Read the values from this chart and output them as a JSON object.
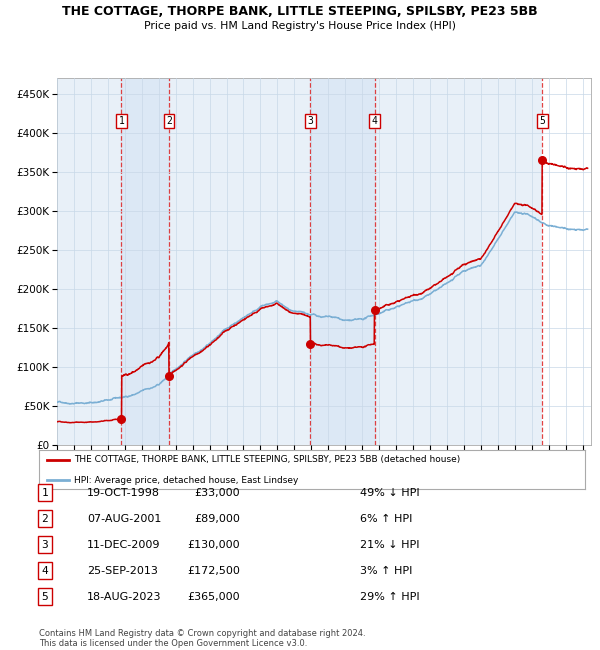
{
  "title": "THE COTTAGE, THORPE BANK, LITTLE STEEPING, SPILSBY, PE23 5BB",
  "subtitle": "Price paid vs. HM Land Registry's House Price Index (HPI)",
  "xlim": [
    1995.0,
    2026.5
  ],
  "ylim": [
    0,
    470000
  ],
  "yticks": [
    0,
    50000,
    100000,
    150000,
    200000,
    250000,
    300000,
    350000,
    400000,
    450000
  ],
  "ytick_labels": [
    "£0",
    "£50K",
    "£100K",
    "£150K",
    "£200K",
    "£250K",
    "£300K",
    "£350K",
    "£400K",
    "£450K"
  ],
  "sale_dates_num": [
    1998.8,
    2001.6,
    2009.95,
    2013.73,
    2023.63
  ],
  "sale_prices": [
    33000,
    89000,
    130000,
    172500,
    365000
  ],
  "sale_labels": [
    "1",
    "2",
    "3",
    "4",
    "5"
  ],
  "hpi_color": "#7bafd4",
  "price_color": "#cc0000",
  "sale_dot_color": "#cc0000",
  "shade_color": "#dce8f5",
  "grid_color": "#c8d8e8",
  "background_color": "#e8f0f8",
  "legend_line1": "THE COTTAGE, THORPE BANK, LITTLE STEEPING, SPILSBY, PE23 5BB (detached house)",
  "legend_line2": "HPI: Average price, detached house, East Lindsey",
  "table_data": [
    [
      "1",
      "19-OCT-1998",
      "£33,000",
      "49% ↓ HPI"
    ],
    [
      "2",
      "07-AUG-2001",
      "£89,000",
      "6% ↑ HPI"
    ],
    [
      "3",
      "11-DEC-2009",
      "£130,000",
      "21% ↓ HPI"
    ],
    [
      "4",
      "25-SEP-2013",
      "£172,500",
      "3% ↑ HPI"
    ],
    [
      "5",
      "18-AUG-2023",
      "£365,000",
      "29% ↑ HPI"
    ]
  ],
  "footer": "Contains HM Land Registry data © Crown copyright and database right 2024.\nThis data is licensed under the Open Government Licence v3.0."
}
